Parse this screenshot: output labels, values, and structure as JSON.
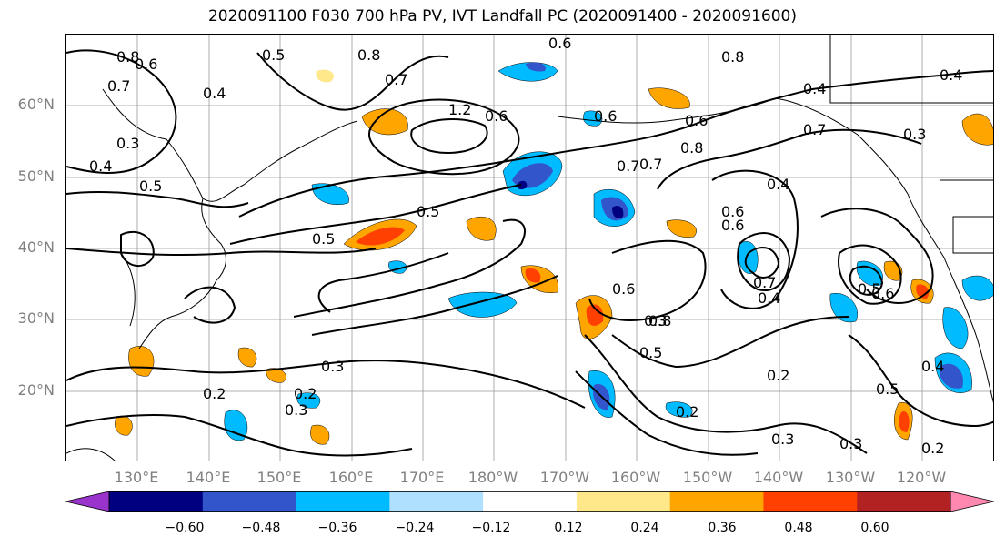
{
  "title": "2020091100 F030 700 hPa PV, IVT Landfall PC (2020091400 - 2020091600)",
  "lat_labels": [
    "60°N",
    "50°N",
    "40°N",
    "30°N",
    "20°N"
  ],
  "lon_labels": [
    "130°E",
    "140°E",
    "150°E",
    "160°E",
    "170°E",
    "180°W",
    "170°W",
    "160°W",
    "150°W",
    "140°W",
    "130°W",
    "120°W"
  ],
  "colorbar": {
    "ticks": [
      "−0.60",
      "−0.48",
      "−0.36",
      "−0.24",
      "−0.12",
      "0.12",
      "0.24",
      "0.36",
      "0.48",
      "0.60"
    ],
    "colors": [
      "#9933cc",
      "#000080",
      "#3355cc",
      "#00bbff",
      "#b0e0ff",
      "#ffffff",
      "#ffe88a",
      "#ffa500",
      "#ff4000",
      "#b22222",
      "#ff88b0"
    ]
  },
  "contour_labels": [
    "0.8",
    "0.6",
    "0.4",
    "0.7",
    "0.3",
    "0.4",
    "0.5",
    "0.5",
    "0.8",
    "0.7",
    "0.6",
    "1.2",
    "0.6",
    "0.7",
    "0.6",
    "0.8",
    "0.6",
    "0.5",
    "0.5",
    "0.6",
    "0.7",
    "0.8",
    "0.7",
    "0.4",
    "0.4",
    "0.6",
    "0.7",
    "0.4",
    "0.6",
    "0.8",
    "0.3",
    "0.3",
    "0.5",
    "0.3",
    "0.2",
    "0.2",
    "0.5",
    "0.6",
    "0.2",
    "0.4",
    "0.5",
    "0.2",
    "0.3",
    "0.3",
    "0.2",
    "0.4",
    "0.3"
  ]
}
